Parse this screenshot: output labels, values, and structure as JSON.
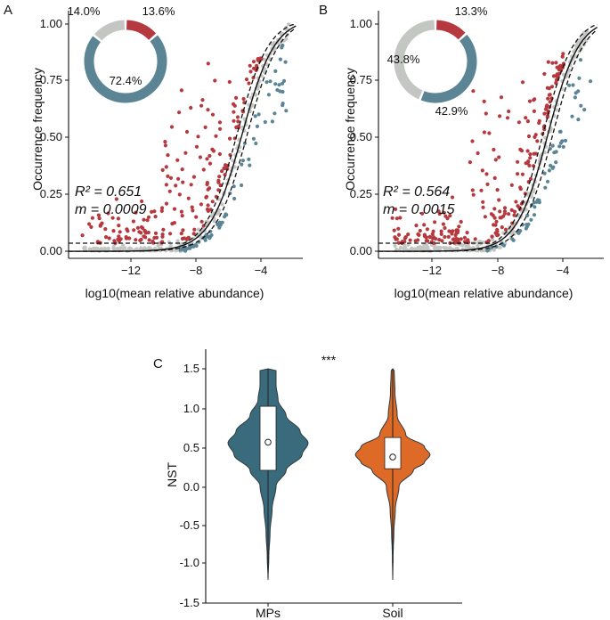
{
  "colors": {
    "above": "#b5393e",
    "below": "#5b8595",
    "neutral": "#c3c6c3",
    "mps_violin": "#3a6b7c",
    "soil_violin": "#dd6a26"
  },
  "chart_data": [
    {
      "panel": "A",
      "type": "scatter",
      "xlabel": "log10(mean relative abundance)",
      "ylabel": "Occurrence frequency",
      "xlim": [
        -15.5,
        -1.8
      ],
      "ylim": [
        -0.03,
        1.03
      ],
      "xticks": [
        -12,
        -8,
        -4
      ],
      "xtick_labels": [
        "−12",
        "−8",
        "−4"
      ],
      "yticks": [
        0,
        0.25,
        0.5,
        0.75,
        1.0
      ],
      "ytick_labels": [
        "0.00",
        "0.25",
        "0.50",
        "0.75",
        "1.00"
      ],
      "fit": {
        "midpoint": -5.35,
        "slope": 1.05
      },
      "lower_bound": {
        "midpoint": -5.05,
        "slope": 1.08,
        "floor": 0.0
      },
      "upper_bound": {
        "midpoint": -5.65,
        "slope": 1.08,
        "floor": 0.035,
        "cap": 0.97
      },
      "r2_label": "R² = 0.651",
      "m_label": "m = 0.0009",
      "seed": 11,
      "points": {
        "above": 200,
        "neutral": 170,
        "below": 75
      },
      "donut": {
        "segments": [
          {
            "label": "13.6%",
            "value": 13.6,
            "group": "above"
          },
          {
            "label": "72.4%",
            "value": 72.4,
            "group": "below"
          },
          {
            "label": "14.0%",
            "value": 14.0,
            "group": "neutral"
          }
        ]
      }
    },
    {
      "panel": "B",
      "type": "scatter",
      "xlabel": "log10(mean relative abundance)",
      "ylabel": "Occurrence frequency",
      "xlim": [
        -15.5,
        -1.8
      ],
      "ylim": [
        -0.03,
        1.03
      ],
      "xticks": [
        -12,
        -8,
        -4
      ],
      "xtick_labels": [
        "−12",
        "−8",
        "−4"
      ],
      "yticks": [
        0,
        0.25,
        0.5,
        0.75,
        1.0
      ],
      "ytick_labels": [
        "0.00",
        "0.25",
        "0.50",
        "0.75",
        "1.00"
      ],
      "fit": {
        "midpoint": -5.2,
        "slope": 1.05
      },
      "lower_bound": {
        "midpoint": -4.9,
        "slope": 1.08,
        "floor": 0.0
      },
      "upper_bound": {
        "midpoint": -5.5,
        "slope": 1.08,
        "floor": 0.035,
        "cap": 0.97
      },
      "r2_label": "R² = 0.564",
      "m_label": "m = 0.0015",
      "seed": 29,
      "points": {
        "above": 240,
        "neutral": 210,
        "below": 60
      },
      "donut": {
        "segments": [
          {
            "label": "13.3%",
            "value": 13.3,
            "group": "above"
          },
          {
            "label": "42.9%",
            "value": 42.9,
            "group": "below"
          },
          {
            "label": "43.8%",
            "value": 43.8,
            "group": "neutral"
          }
        ]
      }
    },
    {
      "panel": "C",
      "type": "violin",
      "ylabel": "NST",
      "ylim": [
        -1.5,
        1.7
      ],
      "yticks": [
        -1.5,
        -1.0,
        -0.5,
        0.0,
        0.5,
        1.0,
        1.5
      ],
      "ytick_labels": [
        "-1.5",
        "-1.0",
        "-0.5",
        "0.0",
        "0.5",
        "1.0",
        "1.5"
      ],
      "significance": "***",
      "groups": [
        {
          "name": "MPs",
          "color_key": "mps_violin",
          "min": -1.2,
          "max": 1.5,
          "q1": 0.2,
          "median": 0.56,
          "q3": 1.02,
          "mean": 0.56,
          "density": [
            [
              -1.2,
              0.0
            ],
            [
              -0.9,
              0.02
            ],
            [
              -0.6,
              0.05
            ],
            [
              -0.3,
              0.1
            ],
            [
              0.0,
              0.2
            ],
            [
              0.2,
              0.45
            ],
            [
              0.4,
              0.85
            ],
            [
              0.55,
              1.0
            ],
            [
              0.7,
              0.8
            ],
            [
              0.9,
              0.45
            ],
            [
              1.1,
              0.25
            ],
            [
              1.3,
              0.2
            ],
            [
              1.5,
              0.2
            ]
          ]
        },
        {
          "name": "Soil",
          "color_key": "soil_violin",
          "min": -1.2,
          "max": 1.5,
          "q1": 0.22,
          "median": 0.37,
          "q3": 0.62,
          "mean": 0.37,
          "density": [
            [
              -1.2,
              0.0
            ],
            [
              -0.9,
              0.01
            ],
            [
              -0.6,
              0.03
            ],
            [
              -0.3,
              0.07
            ],
            [
              0.0,
              0.17
            ],
            [
              0.2,
              0.55
            ],
            [
              0.3,
              0.85
            ],
            [
              0.4,
              1.0
            ],
            [
              0.5,
              0.85
            ],
            [
              0.65,
              0.35
            ],
            [
              0.9,
              0.12
            ],
            [
              1.2,
              0.06
            ],
            [
              1.5,
              0.04
            ]
          ]
        }
      ]
    }
  ]
}
